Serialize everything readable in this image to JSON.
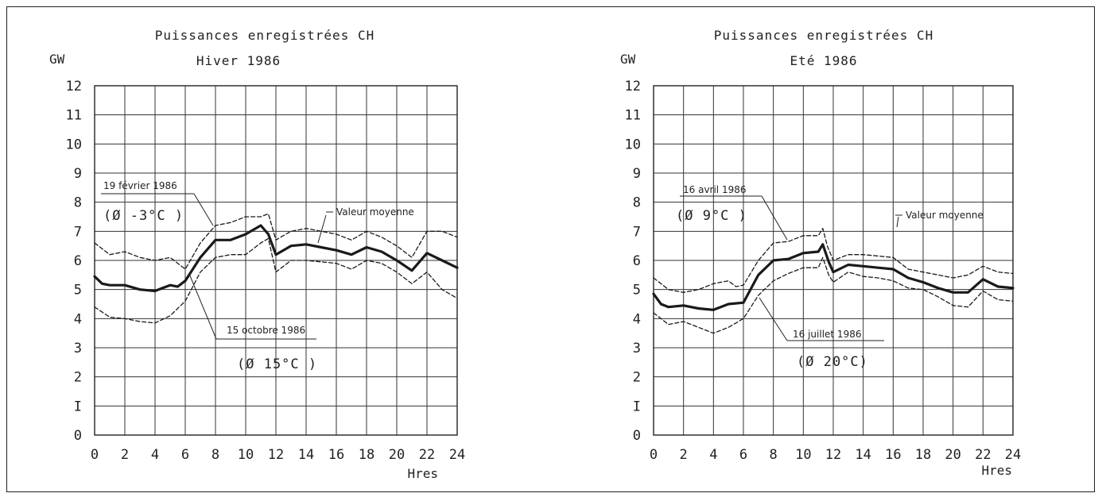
{
  "chart_data": [
    {
      "type": "line",
      "title": "Puissances enregistrées CH",
      "subtitle": "Hiver 1986",
      "ylabel": "GW",
      "xlabel": "Hres",
      "xlim": [
        0,
        24
      ],
      "ylim": [
        0,
        12
      ],
      "x_ticks": [
        "0",
        "2",
        "4",
        "6",
        "8",
        "10",
        "12",
        "14",
        "16",
        "18",
        "20",
        "22",
        "24"
      ],
      "y_ticks": [
        "0",
        "I",
        "2",
        "3",
        "4",
        "5",
        "6",
        "7",
        "8",
        "9",
        "10",
        "11",
        "12"
      ],
      "grid": true,
      "series": [
        {
          "name": "19 février 1986",
          "temperature": "(Ø -3°C )",
          "style": "dashed",
          "x": [
            0,
            1,
            2,
            3,
            4,
            5,
            6,
            7,
            8,
            9,
            10,
            11,
            11.5,
            12,
            13,
            14,
            15,
            16,
            17,
            18,
            19,
            20,
            21,
            22,
            23,
            24
          ],
          "values": [
            6.6,
            6.2,
            6.3,
            6.1,
            6.0,
            6.1,
            5.7,
            6.6,
            7.2,
            7.3,
            7.5,
            7.5,
            7.6,
            6.7,
            7.0,
            7.1,
            7.0,
            6.9,
            6.7,
            7.0,
            6.8,
            6.5,
            6.1,
            7.0,
            7.0,
            6.8
          ]
        },
        {
          "name": "Valeur moyenne",
          "style": "solid-thick",
          "x": [
            0,
            0.5,
            1,
            2,
            3,
            4,
            4.5,
            5,
            5.5,
            6,
            7,
            8,
            9,
            10,
            11,
            11.5,
            12,
            13,
            14,
            15,
            16,
            17,
            18,
            19,
            20,
            21,
            22,
            23,
            24
          ],
          "values": [
            5.45,
            5.2,
            5.15,
            5.15,
            5.0,
            4.95,
            5.05,
            5.15,
            5.1,
            5.3,
            6.1,
            6.7,
            6.7,
            6.9,
            7.2,
            6.9,
            6.2,
            6.5,
            6.55,
            6.45,
            6.35,
            6.2,
            6.45,
            6.3,
            6.0,
            5.65,
            6.25,
            6.0,
            5.75
          ]
        },
        {
          "name": "15 octobre 1986",
          "temperature": "(Ø 15°C )",
          "style": "dashed",
          "x": [
            0,
            1,
            2,
            3,
            4,
            5,
            6,
            7,
            8,
            9,
            10,
            11,
            11.5,
            12,
            13,
            14,
            15,
            16,
            17,
            18,
            19,
            20,
            21,
            22,
            23,
            24
          ],
          "values": [
            4.4,
            4.05,
            4.0,
            3.9,
            3.85,
            4.1,
            4.6,
            5.6,
            6.1,
            6.2,
            6.2,
            6.6,
            6.75,
            5.6,
            6.0,
            6.0,
            5.95,
            5.9,
            5.7,
            6.0,
            5.9,
            5.6,
            5.2,
            5.6,
            5.0,
            4.7
          ]
        }
      ],
      "annotations": [
        "19 février 1986",
        "(Ø -3°C )",
        "Valeur moyenne",
        "15 octobre 1986",
        "(Ø 15°C )"
      ]
    },
    {
      "type": "line",
      "title": "Puissances enregistrées CH",
      "subtitle": "Eté 1986",
      "ylabel": "GW",
      "xlabel": "Hres",
      "xlim": [
        0,
        24
      ],
      "ylim": [
        0,
        12
      ],
      "x_ticks": [
        "0",
        "2",
        "4",
        "6",
        "8",
        "10",
        "12",
        "14",
        "16",
        "18",
        "20",
        "22",
        "24"
      ],
      "y_ticks": [
        "0",
        "I",
        "2",
        "3",
        "4",
        "5",
        "6",
        "7",
        "8",
        "9",
        "10",
        "11",
        "12"
      ],
      "grid": true,
      "series": [
        {
          "name": "16 avril 1986",
          "temperature": "(Ø 9°C )",
          "style": "dashed",
          "x": [
            0,
            1,
            2,
            3,
            4,
            5,
            5.5,
            6,
            7,
            8,
            9,
            10,
            11,
            11.3,
            11.6,
            12,
            13,
            14,
            15,
            16,
            17,
            18,
            19,
            20,
            21,
            22,
            23,
            24
          ],
          "values": [
            5.4,
            5.0,
            4.9,
            5.0,
            5.2,
            5.3,
            5.1,
            5.15,
            6.0,
            6.6,
            6.65,
            6.85,
            6.85,
            7.1,
            6.5,
            6.0,
            6.2,
            6.2,
            6.15,
            6.1,
            5.7,
            5.6,
            5.5,
            5.4,
            5.5,
            5.8,
            5.6,
            5.55
          ]
        },
        {
          "name": "Valeur moyenne",
          "style": "solid-thick",
          "x": [
            0,
            0.5,
            1,
            2,
            3,
            4,
            5,
            6,
            7,
            8,
            9,
            10,
            11,
            11.3,
            11.7,
            12,
            13,
            14,
            15,
            16,
            17,
            18,
            19,
            20,
            21,
            22,
            23,
            24
          ],
          "values": [
            4.85,
            4.5,
            4.4,
            4.45,
            4.35,
            4.3,
            4.5,
            4.55,
            5.5,
            6.0,
            6.05,
            6.25,
            6.3,
            6.55,
            5.95,
            5.6,
            5.85,
            5.8,
            5.75,
            5.7,
            5.4,
            5.25,
            5.05,
            4.9,
            4.9,
            5.35,
            5.1,
            5.05
          ]
        },
        {
          "name": "16 juillet 1986",
          "temperature": "(Ø 20°C)",
          "style": "dashed",
          "x": [
            0,
            1,
            2,
            3,
            4,
            5,
            6,
            7,
            8,
            9,
            10,
            11,
            11.3,
            11.7,
            12,
            13,
            14,
            15,
            16,
            17,
            18,
            19,
            20,
            21,
            22,
            23,
            24
          ],
          "values": [
            4.2,
            3.8,
            3.9,
            3.7,
            3.5,
            3.7,
            4.0,
            4.8,
            5.3,
            5.55,
            5.75,
            5.75,
            6.1,
            5.5,
            5.25,
            5.6,
            5.45,
            5.4,
            5.3,
            5.05,
            5.0,
            4.75,
            4.45,
            4.4,
            4.95,
            4.65,
            4.6
          ]
        }
      ],
      "annotations": [
        "16 avril 1986",
        "(Ø 9°C )",
        "Valeur moyenne",
        "16 juillet 1986",
        "(Ø 20°C)"
      ]
    }
  ]
}
